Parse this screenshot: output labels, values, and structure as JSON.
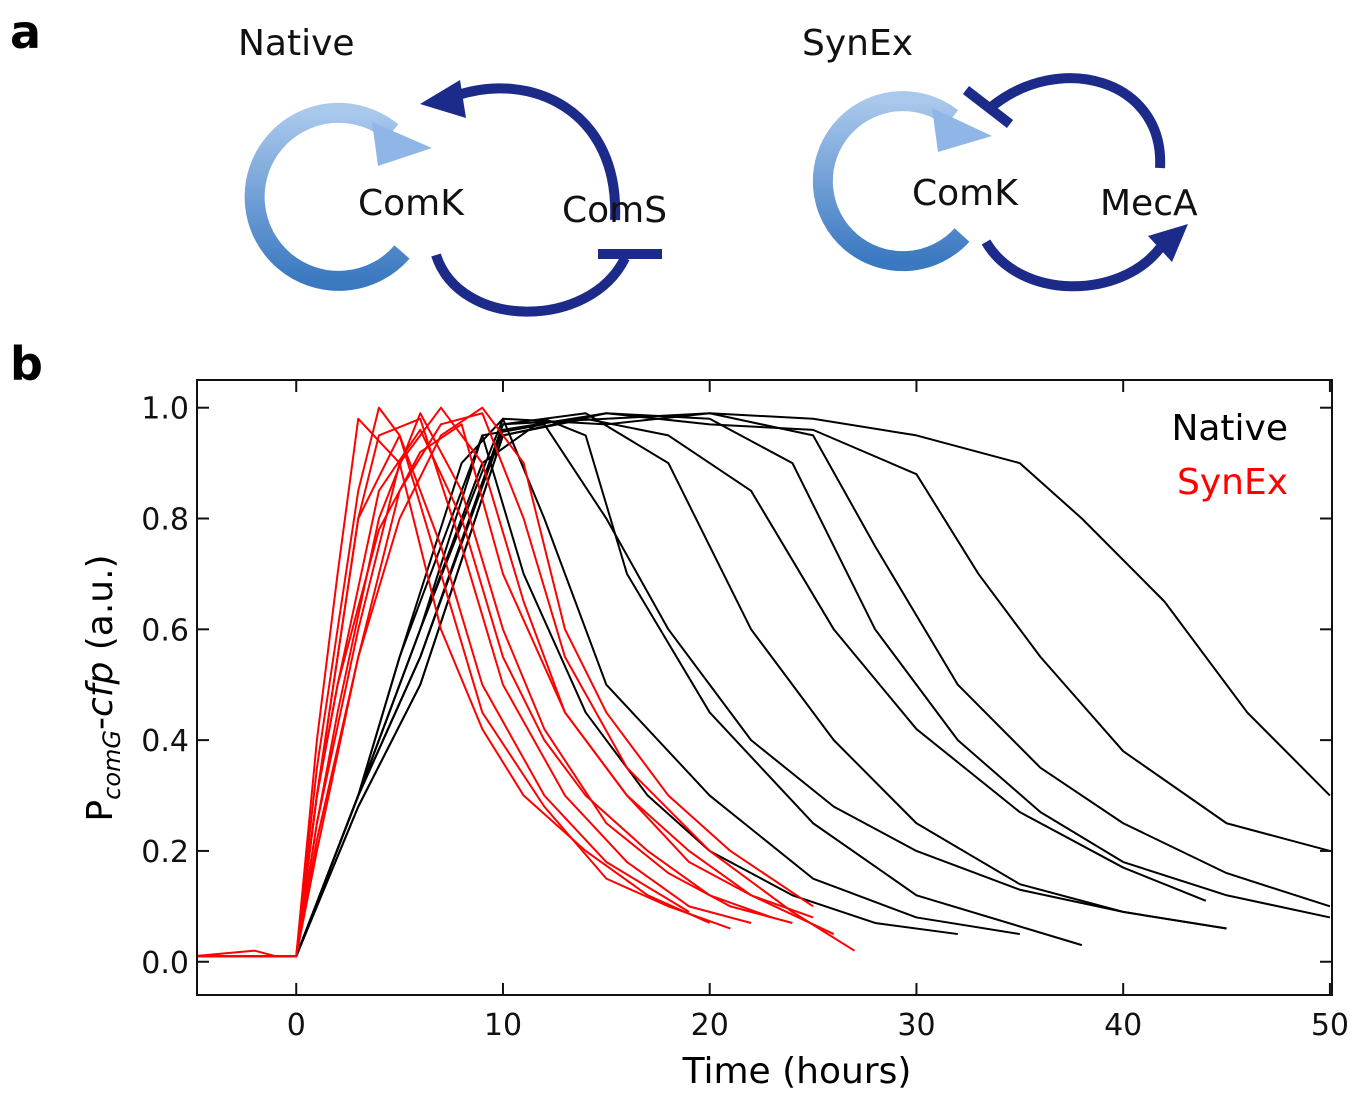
{
  "panel_labels": [
    "a",
    "b"
  ],
  "diagrams": [
    {
      "title": "Native",
      "nodes": [
        "ComK",
        "ComS"
      ]
    },
    {
      "title": "SynEx",
      "nodes": [
        "ComK",
        "MecA"
      ]
    }
  ],
  "chart_data": {
    "type": "line",
    "x_label": "Time (hours)",
    "y_label_parts": [
      "P",
      "comG",
      "-",
      "cfp",
      " (a.u.)"
    ],
    "xlim": [
      -4.8,
      50.1
    ],
    "ylim": [
      -0.06,
      1.05
    ],
    "xticks": [
      0,
      10,
      20,
      30,
      40,
      50
    ],
    "yticks": [
      {
        "value": 0,
        "label": "0.0"
      },
      {
        "value": 0.2,
        "label": "0.2"
      },
      {
        "value": 0.4,
        "label": "0.4"
      },
      {
        "value": 0.6,
        "label": "0.6"
      },
      {
        "value": 0.8,
        "label": "0.8"
      },
      {
        "value": 1,
        "label": "1.0"
      }
    ],
    "legend": "upper right",
    "series": [
      {
        "name": "Native",
        "color": "#000000",
        "traces": [
          {
            "x": [
              -5,
              0,
              3,
              5,
              8,
              10,
              12,
              15,
              20,
              25,
              30,
              35
            ],
            "values": [
              0.01,
              0.01,
              0.3,
              0.55,
              0.9,
              0.98,
              0.8,
              0.5,
              0.3,
              0.15,
              0.08,
              0.05
            ]
          },
          {
            "x": [
              -5,
              0,
              3,
              6,
              9,
              12,
              14,
              16,
              20,
              25,
              30,
              38
            ],
            "values": [
              0.01,
              0.01,
              0.3,
              0.6,
              0.9,
              0.98,
              0.95,
              0.7,
              0.45,
              0.25,
              0.12,
              0.03
            ]
          },
          {
            "x": [
              -5,
              0,
              3,
              6,
              10,
              14,
              18,
              22,
              26,
              30,
              35,
              40,
              45
            ],
            "values": [
              0.01,
              0.01,
              0.3,
              0.55,
              0.97,
              0.99,
              0.9,
              0.6,
              0.4,
              0.25,
              0.14,
              0.09,
              0.06
            ]
          },
          {
            "x": [
              -5,
              0,
              3,
              6,
              10,
              15,
              20,
              24,
              28,
              32,
              36,
              40,
              45,
              50
            ],
            "values": [
              0.01,
              0.01,
              0.28,
              0.5,
              0.95,
              0.99,
              0.98,
              0.9,
              0.6,
              0.4,
              0.27,
              0.18,
              0.12,
              0.08
            ]
          },
          {
            "x": [
              -5,
              0,
              3,
              6,
              10,
              15,
              20,
              25,
              28,
              32,
              36,
              40,
              45,
              50
            ],
            "values": [
              0.01,
              0.01,
              0.3,
              0.6,
              0.98,
              0.97,
              0.99,
              0.95,
              0.75,
              0.5,
              0.35,
              0.25,
              0.16,
              0.1
            ]
          },
          {
            "x": [
              -5,
              0,
              3,
              6,
              10,
              15,
              20,
              25,
              30,
              33,
              36,
              40,
              45,
              50
            ],
            "values": [
              0.01,
              0.01,
              0.3,
              0.55,
              0.96,
              0.99,
              0.97,
              0.96,
              0.88,
              0.7,
              0.55,
              0.38,
              0.25,
              0.2
            ]
          },
          {
            "x": [
              -5,
              0,
              3,
              6,
              10,
              15,
              20,
              25,
              30,
              35,
              38,
              42,
              46,
              50
            ],
            "values": [
              0.01,
              0.01,
              0.3,
              0.55,
              0.97,
              0.98,
              0.99,
              0.98,
              0.95,
              0.9,
              0.8,
              0.65,
              0.45,
              0.3
            ]
          },
          {
            "x": [
              -5,
              0,
              3,
              5,
              7,
              9,
              11,
              14,
              17,
              20,
              24,
              28,
              32
            ],
            "values": [
              0.01,
              0.01,
              0.3,
              0.55,
              0.75,
              0.95,
              0.7,
              0.45,
              0.3,
              0.2,
              0.12,
              0.07,
              0.05
            ]
          },
          {
            "x": [
              -5,
              0,
              3,
              6,
              9,
              12,
              15,
              18,
              22,
              26,
              30,
              35,
              40,
              45
            ],
            "values": [
              0.01,
              0.01,
              0.3,
              0.6,
              0.95,
              0.97,
              0.8,
              0.6,
              0.4,
              0.28,
              0.2,
              0.13,
              0.09,
              0.06
            ]
          },
          {
            "x": [
              -5,
              0,
              3,
              6,
              10,
              14,
              18,
              22,
              26,
              30,
              35,
              40,
              44
            ],
            "values": [
              0.01,
              0.01,
              0.28,
              0.5,
              0.95,
              0.98,
              0.95,
              0.85,
              0.6,
              0.42,
              0.27,
              0.17,
              0.11
            ]
          }
        ]
      },
      {
        "name": "SynEx",
        "color": "#ff0000",
        "traces": [
          {
            "x": [
              -5,
              0,
              1,
              2,
              3,
              4,
              5,
              7,
              9,
              12,
              15,
              18,
              21
            ],
            "values": [
              0.01,
              0.01,
              0.35,
              0.6,
              0.85,
              1,
              0.95,
              0.7,
              0.45,
              0.28,
              0.15,
              0.1,
              0.06
            ]
          },
          {
            "x": [
              -5,
              0,
              1,
              2,
              3,
              4,
              6,
              8,
              10,
              13,
              16,
              19,
              22
            ],
            "values": [
              0.01,
              0.01,
              0.3,
              0.55,
              0.8,
              0.95,
              0.98,
              0.75,
              0.5,
              0.3,
              0.18,
              0.1,
              0.07
            ]
          },
          {
            "x": [
              -5,
              0,
              1,
              2,
              4,
              6,
              8,
              10,
              12,
              15,
              18,
              21,
              24
            ],
            "values": [
              0.01,
              0.01,
              0.25,
              0.45,
              0.8,
              0.99,
              0.85,
              0.6,
              0.42,
              0.25,
              0.16,
              0.1,
              0.07
            ]
          },
          {
            "x": [
              -5,
              0,
              1,
              3,
              5,
              7,
              9,
              11,
              13,
              16,
              19,
              22,
              25
            ],
            "values": [
              0.01,
              0.01,
              0.25,
              0.6,
              0.9,
              1,
              0.9,
              0.65,
              0.45,
              0.3,
              0.18,
              0.12,
              0.08
            ]
          },
          {
            "x": [
              -5,
              0,
              1,
              3,
              5,
              7,
              9,
              11,
              13,
              16,
              20,
              24,
              27
            ],
            "values": [
              0.01,
              0.01,
              0.2,
              0.55,
              0.85,
              0.97,
              0.99,
              0.8,
              0.55,
              0.35,
              0.2,
              0.09,
              0.02
            ]
          },
          {
            "x": [
              -5,
              0,
              1,
              2,
              3,
              5,
              7,
              9,
              11,
              14,
              17,
              20
            ],
            "values": [
              0.01,
              0.01,
              0.4,
              0.7,
              0.98,
              0.9,
              0.6,
              0.42,
              0.3,
              0.2,
              0.12,
              0.07
            ]
          },
          {
            "x": [
              -5,
              0,
              1,
              2,
              4,
              6,
              8,
              10,
              12,
              14,
              17,
              20,
              23
            ],
            "values": [
              0.01,
              0.01,
              0.3,
              0.5,
              0.85,
              0.96,
              0.8,
              0.55,
              0.4,
              0.3,
              0.2,
              0.12,
              0.08
            ]
          },
          {
            "x": [
              -5,
              0,
              1,
              3,
              5,
              7,
              9,
              11,
              13,
              15,
              18,
              21,
              25
            ],
            "values": [
              0.01,
              0.01,
              0.22,
              0.55,
              0.8,
              0.95,
              1,
              0.9,
              0.6,
              0.45,
              0.3,
              0.2,
              0.1
            ]
          },
          {
            "x": [
              -5,
              -2,
              -1,
              0,
              1,
              2,
              3,
              5,
              7,
              9,
              12,
              15,
              19
            ],
            "values": [
              0.01,
              0.02,
              0.01,
              0.01,
              0.3,
              0.55,
              0.8,
              0.95,
              0.75,
              0.5,
              0.3,
              0.18,
              0.09
            ]
          },
          {
            "x": [
              -5,
              0,
              1,
              2,
              4,
              6,
              8,
              10,
              13,
              16,
              19,
              22,
              26
            ],
            "values": [
              0.01,
              0.01,
              0.3,
              0.5,
              0.78,
              0.92,
              0.97,
              0.7,
              0.45,
              0.3,
              0.2,
              0.12,
              0.05
            ]
          }
        ]
      }
    ]
  }
}
